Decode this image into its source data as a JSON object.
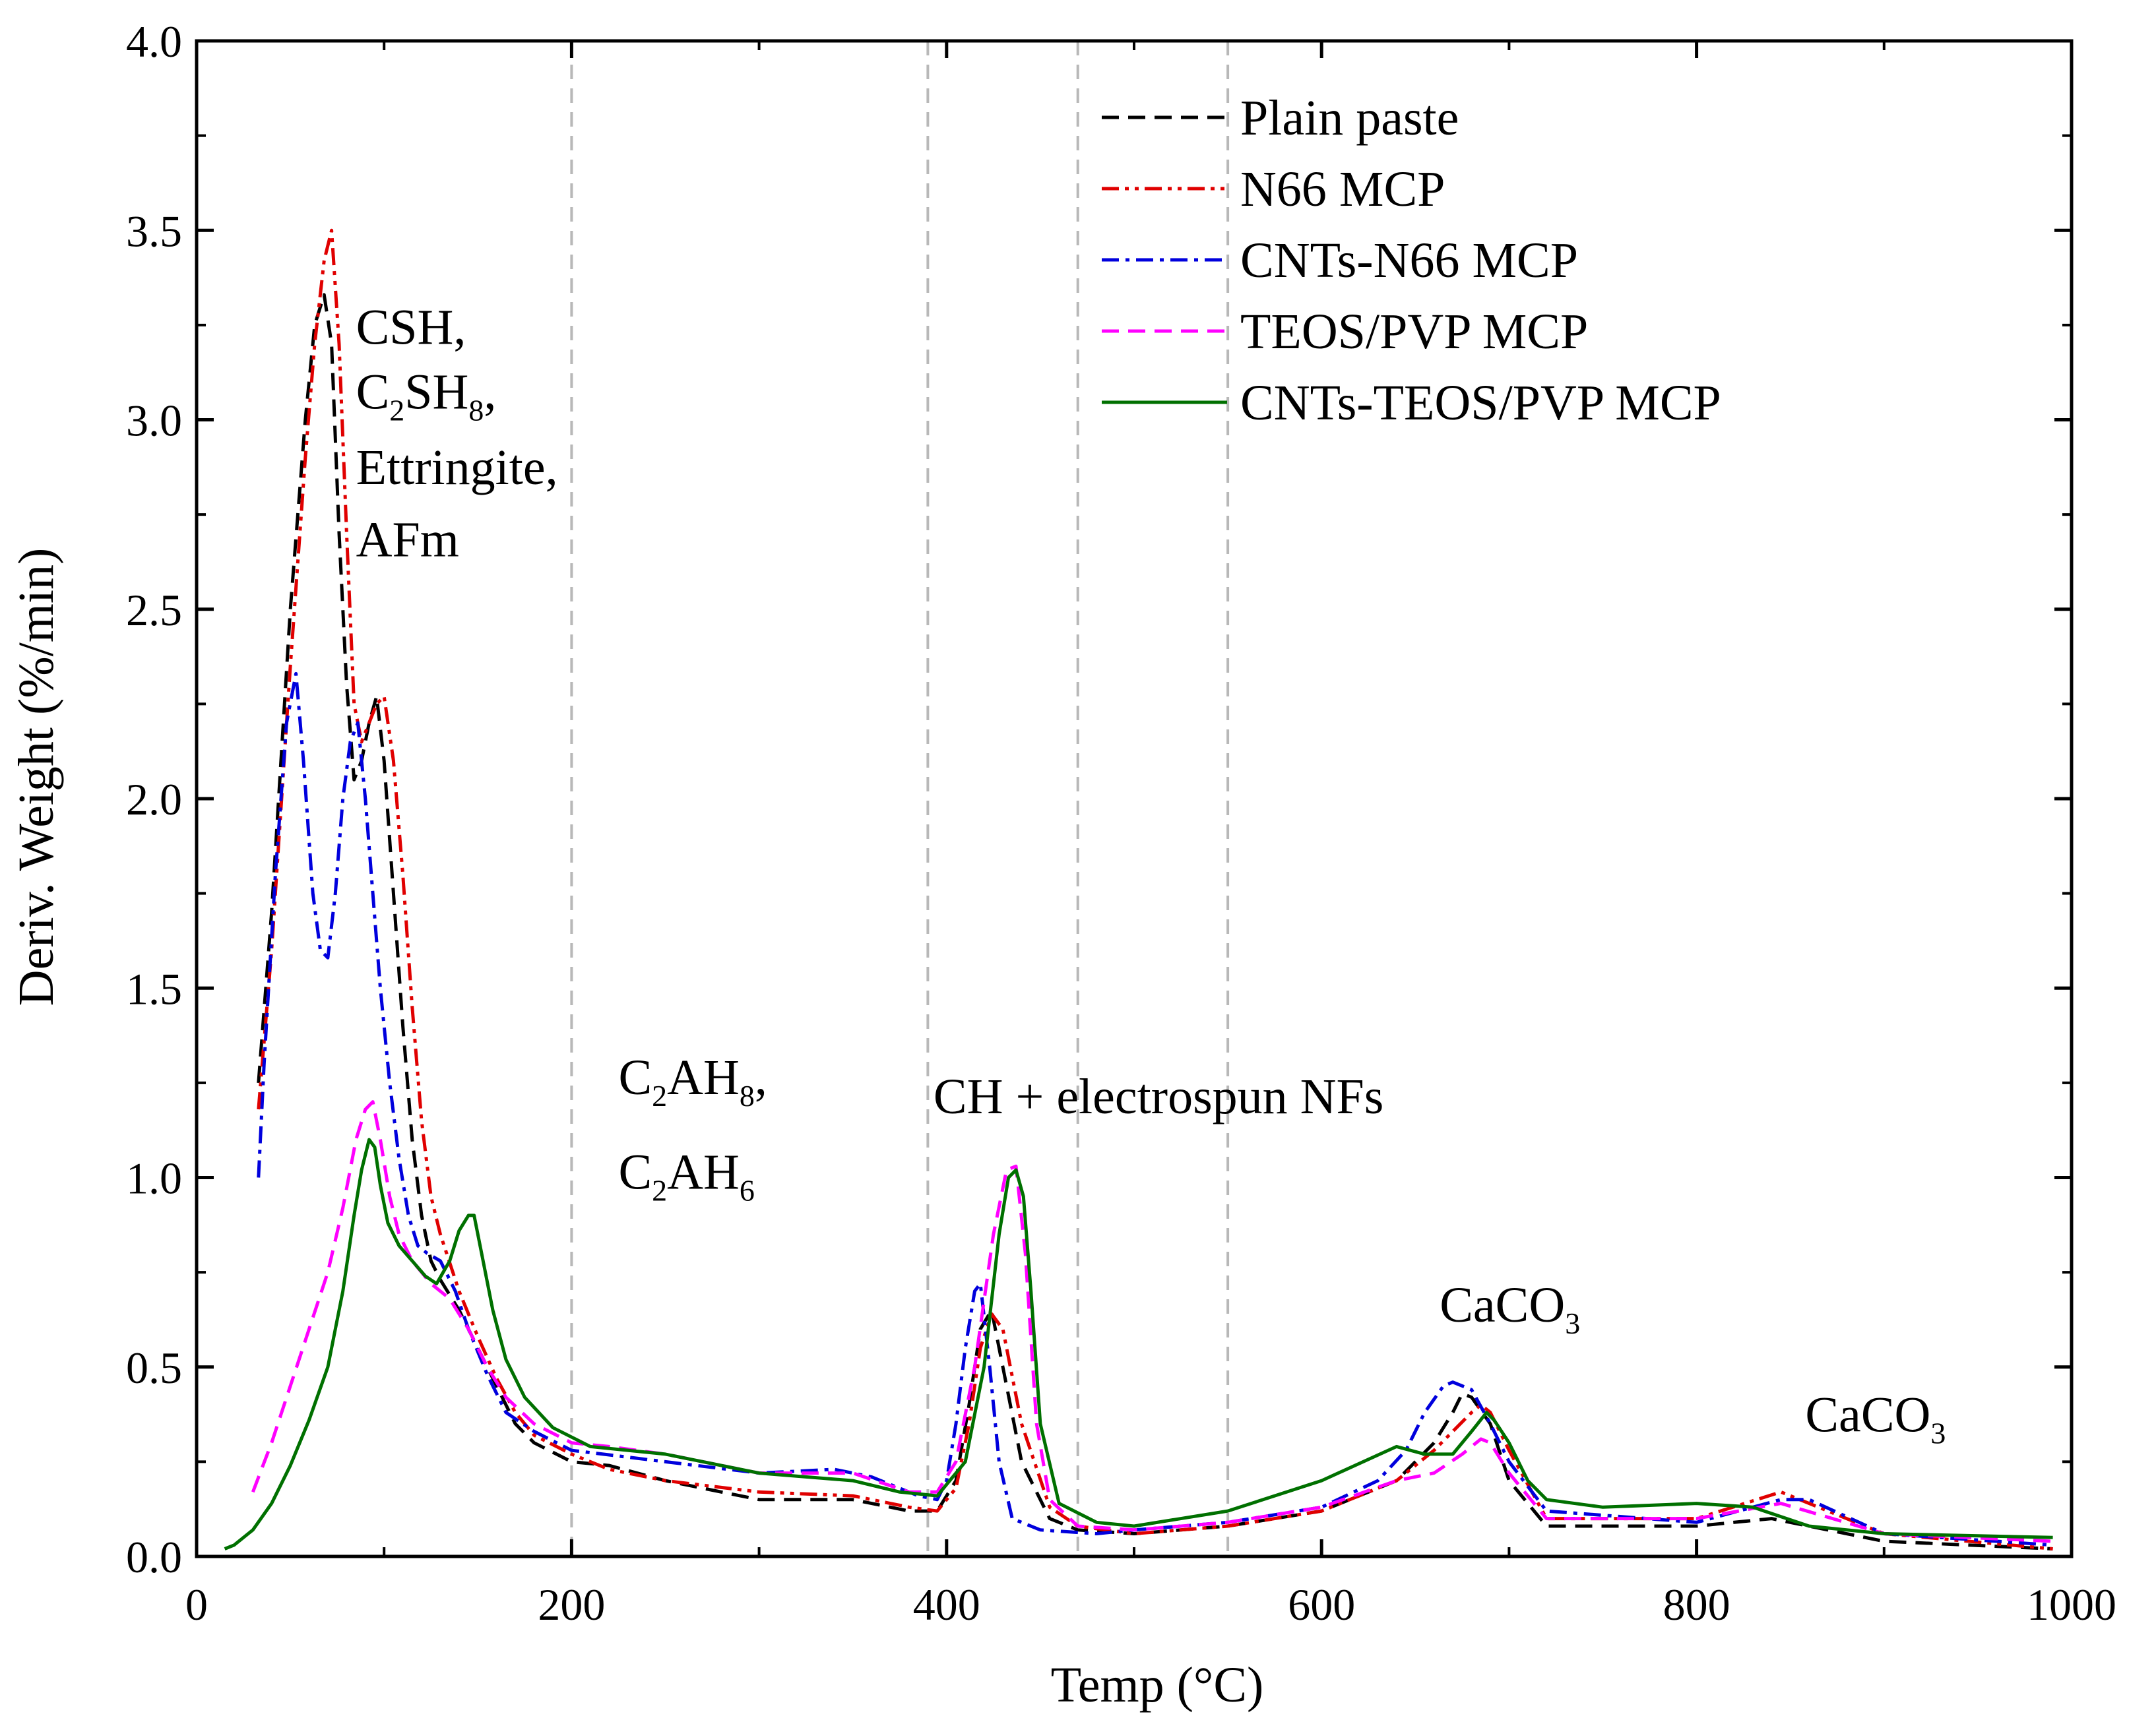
{
  "chart_data": {
    "type": "line",
    "title": "",
    "xlabel": "Temp (°C)",
    "ylabel": "Deriv. Weight (%/min)",
    "xlim": [
      0,
      1000
    ],
    "ylim": [
      0,
      4.0
    ],
    "x_ticks": [
      0,
      200,
      400,
      600,
      800,
      1000
    ],
    "x_tick_labels": [
      "0",
      "200",
      "400",
      "600",
      "800",
      "1000"
    ],
    "y_ticks": [
      0,
      0.5,
      1.0,
      1.5,
      2.0,
      2.5,
      3.0,
      3.5,
      4.0
    ],
    "y_tick_labels": [
      "0.0",
      "0.5",
      "1.0",
      "1.5",
      "2.0",
      "2.5",
      "3.0",
      "3.5",
      "4.0"
    ],
    "grid": false,
    "legend_position": "top-right",
    "reference_lines_x": [
      200,
      390,
      470,
      550
    ],
    "annotations": [
      {
        "id": "csh",
        "parts": [
          {
            "t": "CSH,"
          }
        ],
        "x": 85,
        "y": 3.2
      },
      {
        "id": "c2sh8",
        "parts": [
          {
            "t": "C"
          },
          {
            "t": "2",
            "sub": true
          },
          {
            "t": "SH"
          },
          {
            "t": "8",
            "sub": true
          },
          {
            "t": ","
          }
        ],
        "x": 85,
        "y": 3.03
      },
      {
        "id": "ettringite",
        "parts": [
          {
            "t": "Ettringite,"
          }
        ],
        "x": 85,
        "y": 2.83
      },
      {
        "id": "afm",
        "parts": [
          {
            "t": "AFm"
          }
        ],
        "x": 85,
        "y": 2.64
      },
      {
        "id": "c2ah8",
        "parts": [
          {
            "t": "C"
          },
          {
            "t": "2",
            "sub": true
          },
          {
            "t": "AH"
          },
          {
            "t": "8",
            "sub": true
          },
          {
            "t": ","
          }
        ],
        "x": 225,
        "y": 1.22
      },
      {
        "id": "c2ah6",
        "parts": [
          {
            "t": "C"
          },
          {
            "t": "2",
            "sub": true
          },
          {
            "t": "AH"
          },
          {
            "t": "6",
            "sub": true
          }
        ],
        "x": 225,
        "y": 0.97
      },
      {
        "id": "ch",
        "parts": [
          {
            "t": "CH + electrospun NFs"
          }
        ],
        "x": 393,
        "y": 1.17
      },
      {
        "id": "caco3a",
        "parts": [
          {
            "t": "CaCO"
          },
          {
            "t": "3",
            "sub": true
          }
        ],
        "x": 663,
        "y": 0.62
      },
      {
        "id": "caco3b",
        "parts": [
          {
            "t": "CaCO"
          },
          {
            "t": "3",
            "sub": true
          }
        ],
        "x": 858,
        "y": 0.33
      }
    ],
    "series": [
      {
        "name": "Plain paste",
        "color": "#000000",
        "dash": "dash",
        "x": [
          33,
          40,
          50,
          58,
          63,
          68,
          72,
          76,
          80,
          84,
          88,
          92,
          96,
          100,
          105,
          110,
          115,
          120,
          125,
          130,
          140,
          150,
          160,
          170,
          180,
          200,
          220,
          250,
          300,
          350,
          380,
          395,
          405,
          412,
          418,
          424,
          430,
          440,
          455,
          470,
          500,
          550,
          600,
          640,
          660,
          670,
          675,
          680,
          690,
          700,
          720,
          800,
          840,
          900,
          990
        ],
        "y": [
          1.25,
          1.7,
          2.5,
          3.0,
          3.25,
          3.33,
          3.2,
          2.7,
          2.3,
          2.05,
          2.1,
          2.2,
          2.27,
          2.1,
          1.75,
          1.4,
          1.1,
          0.9,
          0.78,
          0.73,
          0.65,
          0.55,
          0.45,
          0.35,
          0.3,
          0.25,
          0.24,
          0.2,
          0.15,
          0.15,
          0.12,
          0.12,
          0.2,
          0.4,
          0.6,
          0.65,
          0.5,
          0.25,
          0.1,
          0.07,
          0.06,
          0.08,
          0.12,
          0.2,
          0.3,
          0.38,
          0.43,
          0.42,
          0.35,
          0.2,
          0.08,
          0.08,
          0.1,
          0.04,
          0.02
        ]
      },
      {
        "name": "N66 MCP",
        "color": "#e00000",
        "dash": "dashdotdot",
        "x": [
          33,
          40,
          50,
          58,
          63,
          68,
          72,
          76,
          80,
          84,
          88,
          92,
          96,
          100,
          105,
          110,
          115,
          120,
          125,
          130,
          140,
          150,
          160,
          170,
          180,
          200,
          220,
          250,
          300,
          350,
          380,
          395,
          405,
          412,
          418,
          424,
          430,
          440,
          455,
          470,
          500,
          550,
          600,
          640,
          660,
          670,
          680,
          685,
          690,
          700,
          720,
          800,
          845,
          900,
          990
        ],
        "y": [
          1.18,
          1.6,
          2.35,
          2.9,
          3.2,
          3.42,
          3.5,
          3.2,
          2.7,
          2.25,
          2.15,
          2.2,
          2.25,
          2.27,
          2.1,
          1.8,
          1.45,
          1.15,
          0.95,
          0.85,
          0.7,
          0.58,
          0.47,
          0.38,
          0.32,
          0.27,
          0.23,
          0.2,
          0.17,
          0.16,
          0.13,
          0.12,
          0.18,
          0.35,
          0.55,
          0.64,
          0.6,
          0.35,
          0.13,
          0.08,
          0.06,
          0.08,
          0.12,
          0.2,
          0.28,
          0.33,
          0.38,
          0.4,
          0.38,
          0.28,
          0.1,
          0.1,
          0.17,
          0.06,
          0.02
        ]
      },
      {
        "name": "CNTs-N66 MCP",
        "color": "#0000dd",
        "dash": "dashdot",
        "x": [
          33,
          36,
          42,
          48,
          53,
          57,
          62,
          66,
          70,
          74,
          78,
          82,
          86,
          90,
          94,
          98,
          103,
          108,
          113,
          118,
          123,
          130,
          138,
          145,
          155,
          165,
          180,
          200,
          250,
          300,
          340,
          360,
          385,
          395,
          400,
          405,
          410,
          415,
          418,
          423,
          428,
          435,
          450,
          480,
          500,
          550,
          600,
          630,
          645,
          655,
          665,
          670,
          680,
          690,
          700,
          720,
          800,
          845,
          860,
          900,
          990
        ],
        "y": [
          1.0,
          1.3,
          1.8,
          2.2,
          2.33,
          2.1,
          1.75,
          1.6,
          1.58,
          1.75,
          2.0,
          2.15,
          2.2,
          2.0,
          1.75,
          1.5,
          1.25,
          1.05,
          0.9,
          0.82,
          0.8,
          0.78,
          0.7,
          0.6,
          0.48,
          0.38,
          0.33,
          0.28,
          0.25,
          0.22,
          0.23,
          0.21,
          0.16,
          0.15,
          0.2,
          0.35,
          0.55,
          0.7,
          0.72,
          0.5,
          0.25,
          0.1,
          0.07,
          0.06,
          0.07,
          0.09,
          0.13,
          0.2,
          0.28,
          0.38,
          0.45,
          0.46,
          0.44,
          0.35,
          0.25,
          0.12,
          0.09,
          0.15,
          0.15,
          0.06,
          0.03
        ]
      },
      {
        "name": "TEOS/PVP MCP",
        "color": "#ff00ff",
        "dash": "dash",
        "x": [
          30,
          40,
          50,
          60,
          70,
          78,
          85,
          90,
          94,
          98,
          103,
          108,
          115,
          125,
          135,
          145,
          155,
          165,
          180,
          200,
          220,
          250,
          300,
          350,
          380,
          395,
          405,
          415,
          425,
          432,
          437,
          442,
          448,
          455,
          470,
          500,
          550,
          600,
          640,
          660,
          675,
          685,
          690,
          700,
          720,
          800,
          845,
          900,
          990
        ],
        "y": [
          0.17,
          0.3,
          0.45,
          0.6,
          0.75,
          0.92,
          1.1,
          1.18,
          1.2,
          1.1,
          0.95,
          0.85,
          0.78,
          0.72,
          0.68,
          0.6,
          0.5,
          0.42,
          0.35,
          0.3,
          0.29,
          0.27,
          0.22,
          0.22,
          0.17,
          0.17,
          0.25,
          0.5,
          0.85,
          1.02,
          1.03,
          0.8,
          0.35,
          0.15,
          0.08,
          0.07,
          0.09,
          0.13,
          0.2,
          0.22,
          0.27,
          0.31,
          0.3,
          0.22,
          0.1,
          0.1,
          0.14,
          0.06,
          0.04
        ]
      },
      {
        "name": "CNTs-TEOS/PVP MCP",
        "color": "#007000",
        "dash": "solid",
        "x": [
          15,
          20,
          30,
          40,
          50,
          60,
          70,
          78,
          84,
          88,
          92,
          95,
          98,
          102,
          108,
          115,
          122,
          128,
          135,
          140,
          145,
          148,
          152,
          158,
          165,
          175,
          190,
          210,
          250,
          300,
          350,
          375,
          395,
          410,
          420,
          428,
          433,
          437,
          441,
          445,
          450,
          460,
          480,
          500,
          550,
          600,
          640,
          655,
          670,
          680,
          688,
          692,
          700,
          710,
          720,
          750,
          800,
          830,
          860,
          900,
          990
        ],
        "y": [
          0.02,
          0.03,
          0.07,
          0.14,
          0.24,
          0.36,
          0.5,
          0.7,
          0.9,
          1.02,
          1.1,
          1.08,
          0.98,
          0.88,
          0.82,
          0.78,
          0.74,
          0.72,
          0.78,
          0.86,
          0.9,
          0.9,
          0.8,
          0.65,
          0.52,
          0.42,
          0.34,
          0.29,
          0.27,
          0.22,
          0.2,
          0.17,
          0.16,
          0.25,
          0.5,
          0.85,
          1.0,
          1.02,
          0.95,
          0.7,
          0.35,
          0.14,
          0.09,
          0.08,
          0.12,
          0.2,
          0.29,
          0.27,
          0.27,
          0.33,
          0.38,
          0.36,
          0.3,
          0.2,
          0.15,
          0.13,
          0.14,
          0.13,
          0.08,
          0.06,
          0.05
        ]
      }
    ]
  }
}
